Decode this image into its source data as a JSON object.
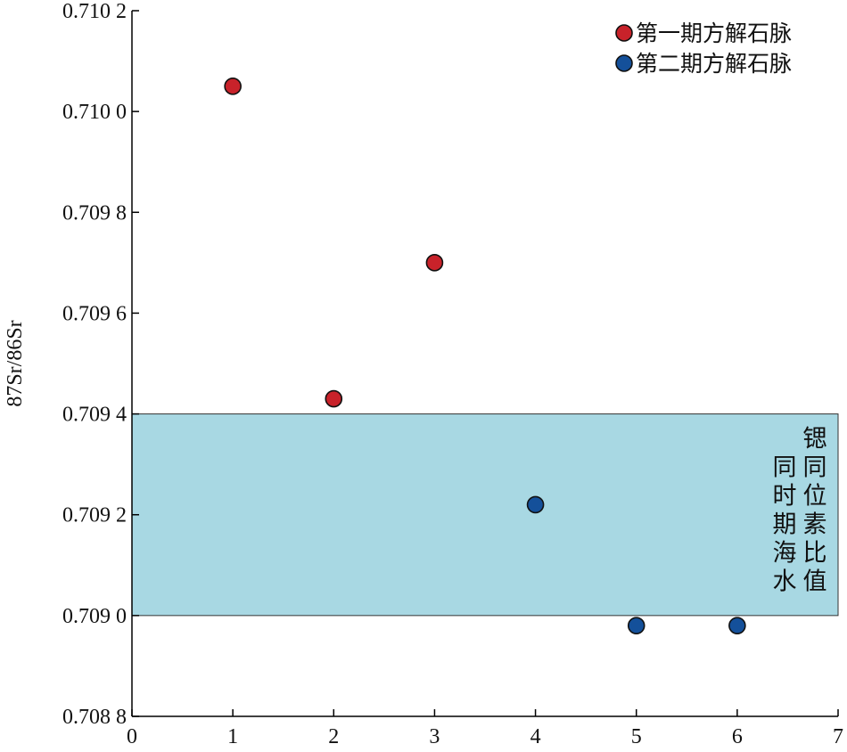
{
  "chart_data": {
    "type": "scatter",
    "ylabel": "87Sr/86Sr",
    "xlim": [
      0,
      7
    ],
    "ylim": [
      0.7088,
      0.7102
    ],
    "x_ticks": [
      0,
      1,
      2,
      3,
      4,
      5,
      6,
      7
    ],
    "x_tick_labels": [
      "0",
      "1",
      "2",
      "3",
      "4",
      "5",
      "6",
      "7"
    ],
    "y_ticks": [
      0.7088,
      0.709,
      0.7092,
      0.7094,
      0.7096,
      0.7098,
      0.71,
      0.7102
    ],
    "y_tick_labels": [
      "0.708 8",
      "0.709 0",
      "0.709 2",
      "0.709 4",
      "0.709 6",
      "0.709 8",
      "0.710 0",
      "0.710 2"
    ],
    "grid": false,
    "legend_position": "top-right",
    "series": [
      {
        "name": "第一期方解石脉",
        "color": "#c8222a",
        "points": [
          {
            "x": 1,
            "y": 0.71005
          },
          {
            "x": 2,
            "y": 0.70943
          },
          {
            "x": 3,
            "y": 0.7097
          }
        ]
      },
      {
        "name": "第二期方解石脉",
        "color": "#14509a",
        "points": [
          {
            "x": 4,
            "y": 0.70922
          },
          {
            "x": 5,
            "y": 0.70898
          },
          {
            "x": 6,
            "y": 0.70898
          }
        ]
      }
    ],
    "band": {
      "y_range": [
        0.709,
        0.7094
      ],
      "color": "#a8d8e3",
      "label_lines": [
        "同时期海水",
        "锶同位素比值"
      ]
    }
  }
}
